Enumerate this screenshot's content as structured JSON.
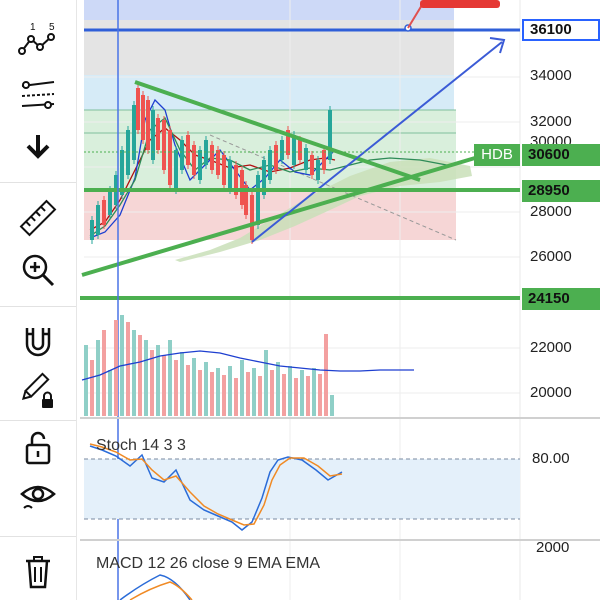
{
  "toolbar": {
    "items": [
      {
        "name": "indicators-icon",
        "label": "indicator templates"
      },
      {
        "name": "trend-line-icon"
      },
      {
        "name": "arrow-down-icon"
      },
      {
        "name": "ruler-icon"
      },
      {
        "name": "zoom-in-icon"
      },
      {
        "name": "magnet-icon"
      },
      {
        "name": "lock-drawing-icon"
      },
      {
        "name": "unlock-icon"
      },
      {
        "name": "eye-icon"
      },
      {
        "name": "trash-icon"
      }
    ]
  },
  "price_axis": {
    "ticks": [
      "34000",
      "32000",
      "30000",
      "28000",
      "26000",
      "22000",
      "20000"
    ],
    "stoch_tick": "80.00",
    "macd_tick": "2000"
  },
  "tags": {
    "level_top": "36100",
    "symbol": "HDB",
    "last_price": "30600",
    "level_mid": "28950",
    "level_low": "24150"
  },
  "indicators": {
    "stoch": "Stoch 14 3 3",
    "macd": "MACD 12 26 close 9 EMA EMA"
  },
  "colors": {
    "green": "#4caf50",
    "blue_line": "#2f5fd8",
    "tag_blue": "#2962ff",
    "up": "#26a69a",
    "down": "#ef5350"
  }
}
